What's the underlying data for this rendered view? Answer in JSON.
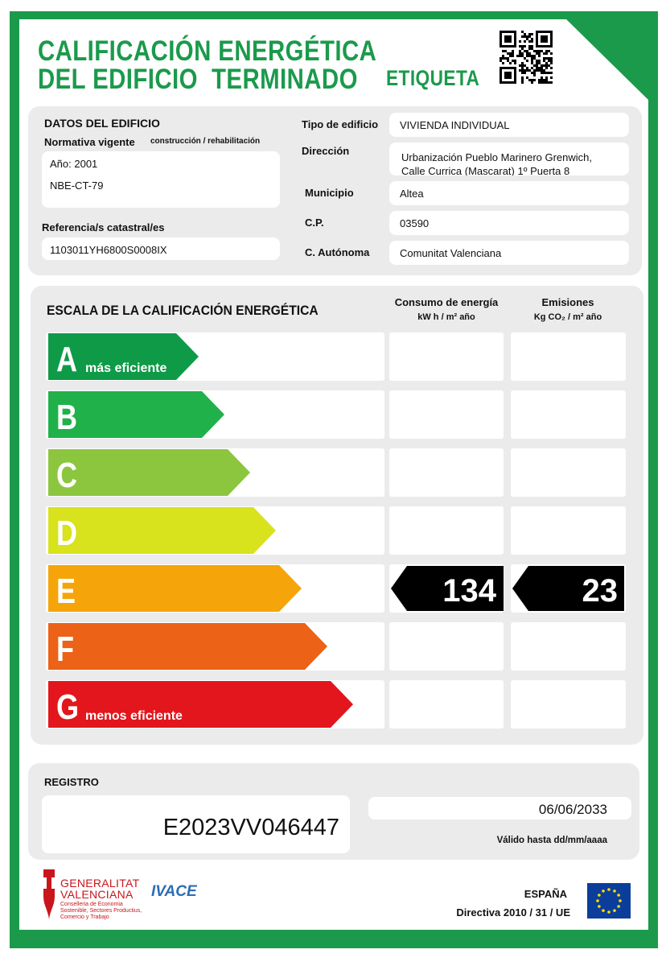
{
  "header": {
    "title_line1": "CALIFICACIÓN ENERGÉTICA",
    "title_line2": "DEL EDIFICIO  TERMINADO",
    "label": "ETIQUETA"
  },
  "building": {
    "section_title": "DATOS DEL EDIFICIO",
    "normativa_label": "Normativa vigente",
    "normativa_note": "construcción / rehabilitación",
    "year": "Año: 2001",
    "norm": "NBE-CT-79",
    "cadastral_label": "Referencia/s catastral/es",
    "cadastral": "1103011YH6800S0008IX",
    "fields": [
      {
        "label": "Tipo de edificio",
        "value": "VIVIENDA INDIVIDUAL"
      },
      {
        "label": "Dirección",
        "value": [
          "Urbanización Pueblo Marinero Grenwich,",
          "Calle Currica (Mascarat) 1º Puerta 8"
        ]
      },
      {
        "label": "Municipio",
        "value": "Altea"
      },
      {
        "label": "C.P.",
        "value": "03590"
      },
      {
        "label": "C. Autónoma",
        "value": "Comunitat Valenciana"
      }
    ]
  },
  "scale": {
    "title": "ESCALA DE LA CALIFICACIÓN ENERGÉTICA",
    "consumption_header": "Consumo de energía",
    "consumption_unit": "kW h / m² año",
    "emissions_header": "Emisiones",
    "emissions_unit": "Kg CO₂ / m² año",
    "classes": [
      {
        "letter": "A",
        "note": "más eficiente",
        "color": "#0f9a47"
      },
      {
        "letter": "B",
        "color": "#20b14a"
      },
      {
        "letter": "C",
        "color": "#8cc63e"
      },
      {
        "letter": "D",
        "color": "#d8e21d"
      },
      {
        "letter": "E",
        "color": "#f5a50a",
        "consumption": 134,
        "emissions": 23
      },
      {
        "letter": "F",
        "color": "#ec6216"
      },
      {
        "letter": "G",
        "note": "menos eficiente",
        "color": "#e2161c"
      }
    ]
  },
  "registry": {
    "label": "REGISTRO",
    "number": "E2023VV046447",
    "valid_date": "06/06/2033",
    "valid_label": "Válido hasta dd/mm/aaaa"
  },
  "footer": {
    "gv_line1": "GENERALITAT",
    "gv_line2": "VALENCIANA",
    "gv_department": [
      "Conselleria de Economia",
      "Sostenible, Sectores Productius,",
      "Comercio y Trabajo"
    ],
    "agency": "IVACE",
    "country": "ESPAÑA",
    "directive": "Directiva 2010 / 31 / UE"
  }
}
